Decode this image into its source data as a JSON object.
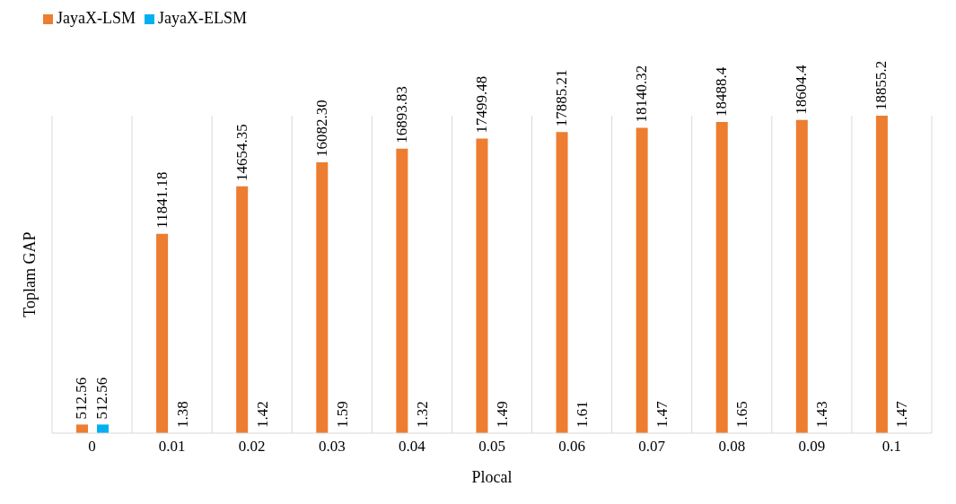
{
  "chart_data": {
    "type": "bar",
    "xlabel": "Plocal",
    "ylabel": "Toplam GAP",
    "categories": [
      "0",
      "0.01",
      "0.02",
      "0.03",
      "0.04",
      "0.05",
      "0.06",
      "0.07",
      "0.08",
      "0.09",
      "0.1"
    ],
    "series": [
      {
        "name": "JayaX-LSM",
        "color": "#ed7d31",
        "values": [
          512.56,
          11841.18,
          14654.35,
          16082.3,
          16893.83,
          17499.48,
          17885.21,
          18140.32,
          18488.4,
          18604.4,
          18855.2
        ],
        "value_labels": [
          "512.56",
          "11841.18",
          "14654.35",
          "16082.30",
          "16893.83",
          "17499.48",
          "17885.21",
          "18140.32",
          "18488.4",
          "18604.4",
          "18855.2"
        ]
      },
      {
        "name": "JayaX-ELSM",
        "color": "#00b0f0",
        "values": [
          512.56,
          1.38,
          1.42,
          1.59,
          1.32,
          1.49,
          1.61,
          1.47,
          1.65,
          1.43,
          1.47
        ],
        "value_labels": [
          "512.56",
          "1.38",
          "1.42",
          "1.59",
          "1.32",
          "1.49",
          "1.61",
          "1.47",
          "1.65",
          "1.43",
          "1.47"
        ]
      }
    ],
    "grid": "x",
    "legend": "top left"
  }
}
